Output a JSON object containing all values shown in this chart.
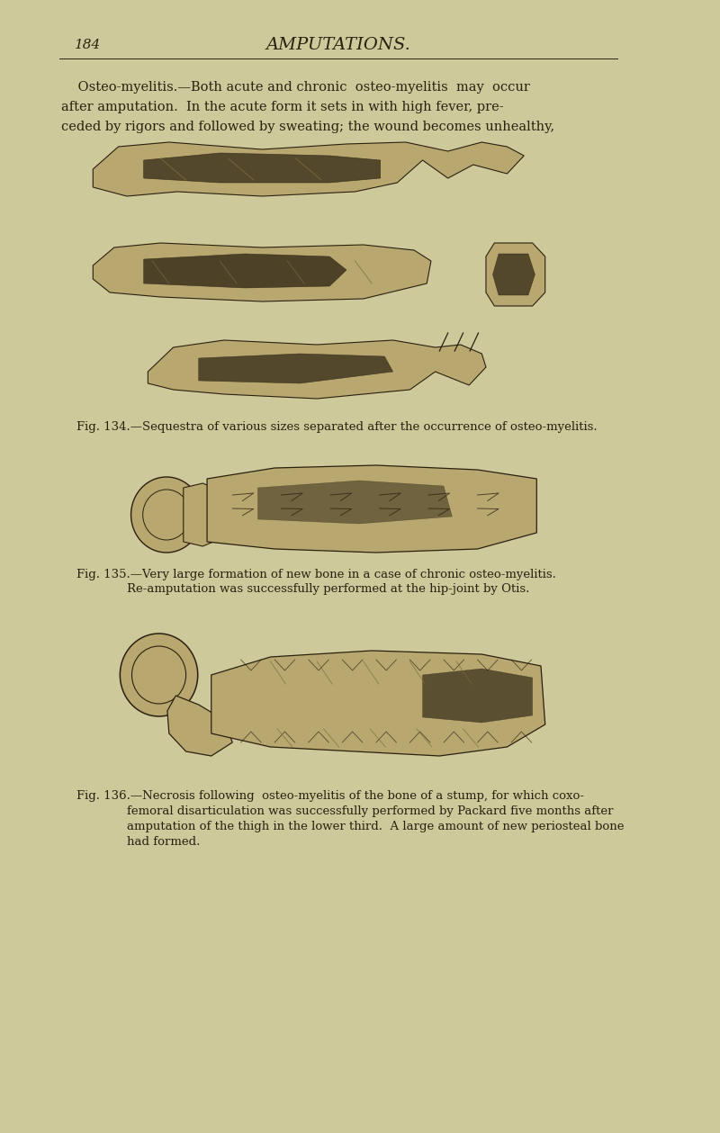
{
  "background_color": "#cec99a",
  "text_color": "#2a2010",
  "page_number": "184",
  "header_title": "AMPUTATIONS.",
  "body_line1": "    Osteo-myelitis.—Both acute and chronic  osteo-myelitis  may  occur",
  "body_line2": "after amputation.  In the acute form it sets in with high fever, pre-",
  "body_line3": "ceded by rigors and followed by sweating; the wound becomes unhealthy,",
  "fig134_caption": "Fig. 134.—Sequestra of various sizes separated after the occurrence of osteo-myelitis.",
  "fig135_caption_line1": "Fig. 135.—Very large formation of new bone in a case of chronic osteo-myelitis.",
  "fig135_caption_line2": "Re-amputation was successfully performed at the hip-joint by Otis.",
  "fig136_caption_line1": "Fig. 136.—Necrosis following  osteo-myelitis of the bone of a stump, for which coxo-",
  "fig136_caption_line2": "femoral disarticulation was successfully performed by Packard five months after",
  "fig136_caption_line3": "amputation of the thigh in the lower third.  A large amount of new periosteal bone",
  "fig136_caption_line4": "had formed.",
  "fig_dark": "#2a2010",
  "fig_mid": "#7a6a3a",
  "fig_light": "#b8a870"
}
